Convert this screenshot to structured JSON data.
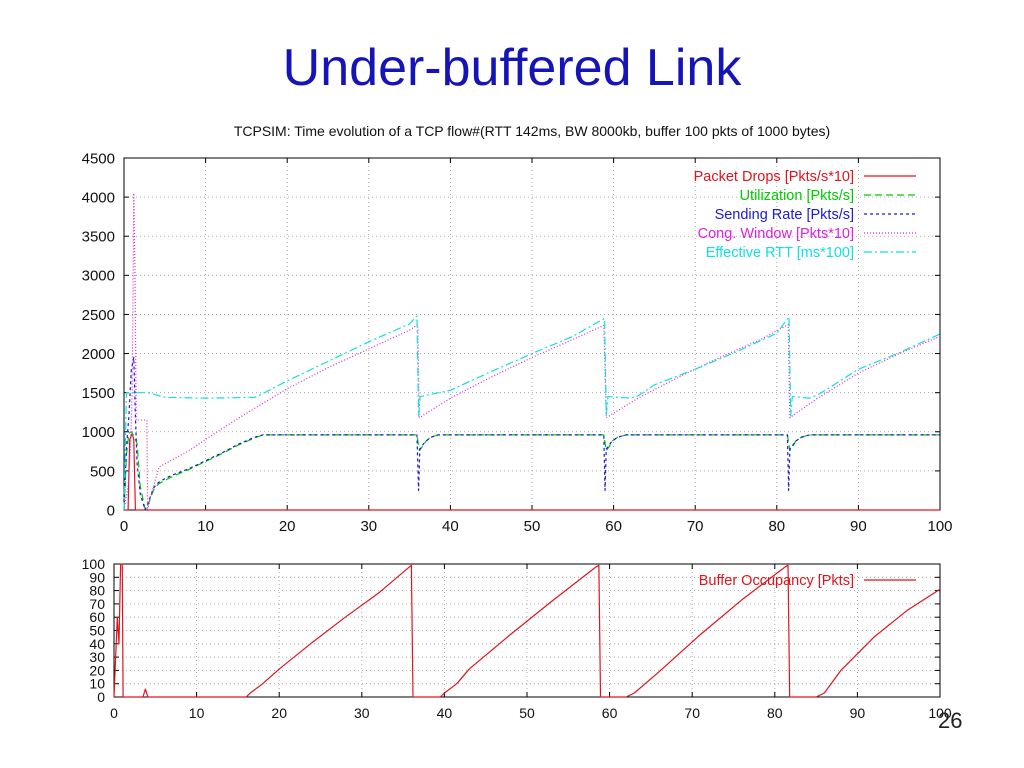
{
  "slide": {
    "title": "Under-buffered Link",
    "page_number": "26"
  },
  "chart_data": [
    {
      "type": "line",
      "title": "TCPSIM: Time evolution of a TCP flow#(RTT 142ms, BW 8000kb, buffer 100 pkts of 1000 bytes)",
      "xlabel": "",
      "ylabel": "",
      "xlim": [
        0,
        100
      ],
      "ylim": [
        0,
        4500
      ],
      "xticks": [
        0,
        10,
        20,
        30,
        40,
        50,
        60,
        70,
        80,
        90,
        100
      ],
      "yticks": [
        0,
        500,
        1000,
        1500,
        2000,
        2500,
        3000,
        3500,
        4000,
        4500
      ],
      "grid": true,
      "legend": "top-right",
      "series": [
        {
          "name": "Packet Drops [Pkts/s*10]",
          "color": "#e0141e",
          "dash": "",
          "x": [
            0,
            0.5,
            0.7,
            1.0,
            1.2,
            1.4,
            1.6,
            2,
            100
          ],
          "y": [
            0,
            0,
            900,
            980,
            900,
            0,
            0,
            0,
            0
          ]
        },
        {
          "name": "Utilization [Pkts/s]",
          "color": "#00cc00",
          "dash": "7,4",
          "x": [
            0,
            0.3,
            0.6,
            0.9,
            1.2,
            1.6,
            2.0,
            2.6,
            3.0,
            3.6,
            4.2,
            5,
            6,
            8,
            10,
            12,
            14,
            16,
            17,
            20,
            25,
            30,
            35,
            35.9,
            36.2,
            36.5,
            37,
            37.6,
            38.5,
            40,
            45,
            50,
            55,
            58.8,
            59.1,
            59.4,
            59.8,
            60.5,
            61.5,
            63,
            70,
            75,
            81.3,
            81.6,
            81.9,
            82.3,
            83,
            84,
            86,
            90,
            95,
            100
          ],
          "y": [
            0,
            700,
            980,
            1000,
            950,
            850,
            300,
            0,
            80,
            250,
            330,
            380,
            430,
            520,
            620,
            720,
            830,
            920,
            960,
            960,
            960,
            960,
            960,
            960,
            760,
            800,
            880,
            930,
            960,
            960,
            960,
            960,
            960,
            960,
            760,
            800,
            880,
            930,
            960,
            960,
            960,
            960,
            960,
            760,
            800,
            880,
            930,
            960,
            960,
            960,
            960,
            960
          ]
        },
        {
          "name": "Sending Rate [Pkts/s]",
          "color": "#1a1ad6",
          "dash": "3,3",
          "x": [
            0,
            0.3,
            0.6,
            0.9,
            1.2,
            1.4,
            1.6,
            2.0,
            2.6,
            3.0,
            3.6,
            4.2,
            5,
            6,
            8,
            10,
            12,
            14,
            16,
            17,
            20,
            25,
            30,
            35,
            35.9,
            36.1,
            36.25,
            36.5,
            37,
            37.6,
            38.5,
            40,
            45,
            50,
            55,
            58.8,
            58.95,
            59.1,
            59.4,
            59.8,
            60.5,
            61.5,
            63,
            70,
            75,
            81.3,
            81.45,
            81.6,
            81.9,
            82.3,
            83,
            84,
            86,
            90,
            95,
            100
          ],
          "y": [
            0,
            800,
            1200,
            1800,
            1950,
            1200,
            600,
            200,
            0,
            100,
            280,
            350,
            400,
            450,
            530,
            630,
            730,
            840,
            930,
            960,
            960,
            960,
            960,
            960,
            960,
            250,
            780,
            820,
            880,
            930,
            960,
            960,
            960,
            960,
            960,
            960,
            250,
            780,
            820,
            880,
            930,
            960,
            960,
            960,
            960,
            960,
            250,
            780,
            820,
            880,
            930,
            960,
            960,
            960,
            960,
            960
          ]
        },
        {
          "name": "Cong. Window [Pkts*10]",
          "color": "#e020e0",
          "dash": "1,2",
          "x": [
            0,
            0.5,
            0.8,
            1.0,
            1.2,
            1.35,
            1.5,
            1.8,
            2.8,
            2.9,
            3.2,
            4.3,
            8,
            12,
            16,
            20,
            25,
            30,
            35,
            36,
            36.2,
            40,
            45,
            50,
            55,
            58.8,
            59.1,
            63,
            68,
            73,
            78,
            81.4,
            81.6,
            85,
            90,
            95,
            100
          ],
          "y": [
            0,
            300,
            800,
            1500,
            4050,
            3000,
            1150,
            1150,
            1150,
            0,
            150,
            550,
            760,
            1040,
            1300,
            1550,
            1820,
            2060,
            2300,
            2370,
            1180,
            1430,
            1700,
            1950,
            2180,
            2360,
            1180,
            1430,
            1700,
            1950,
            2180,
            2370,
            1180,
            1430,
            1750,
            2000,
            2220
          ]
        },
        {
          "name": "Effective RTT [ms*100]",
          "color": "#10e0e0",
          "dash": "8,3,2,3",
          "x": [
            0,
            0.3,
            1.0,
            2.0,
            3.0,
            5,
            10,
            16,
            16.5,
            20,
            25,
            30,
            35,
            35.9,
            36.1,
            36.3,
            40,
            45,
            50,
            55,
            58.9,
            59.1,
            59.3,
            62,
            63,
            65,
            70,
            75,
            80,
            81.5,
            81.7,
            81.9,
            84,
            85,
            87,
            90,
            95,
            100
          ],
          "y": [
            0,
            1500,
            1500,
            1500,
            1500,
            1440,
            1430,
            1440,
            1460,
            1650,
            1900,
            2150,
            2380,
            2480,
            1200,
            1450,
            1530,
            1770,
            2000,
            2220,
            2450,
            1200,
            1450,
            1430,
            1460,
            1600,
            1800,
            2020,
            2260,
            2470,
            1200,
            1450,
            1430,
            1470,
            1600,
            1800,
            2010,
            2250
          ]
        }
      ]
    },
    {
      "type": "line",
      "title": "",
      "xlabel": "",
      "ylabel": "",
      "xlim": [
        0,
        100
      ],
      "ylim": [
        0,
        100
      ],
      "xticks": [
        0,
        10,
        20,
        30,
        40,
        50,
        60,
        70,
        80,
        90,
        100
      ],
      "yticks": [
        0,
        10,
        20,
        30,
        40,
        50,
        60,
        70,
        80,
        90,
        100
      ],
      "grid": true,
      "legend": "top-right",
      "series": [
        {
          "name": "Buffer Occupancy [Pkts]",
          "color": "#e0141e",
          "dash": "",
          "x": [
            0,
            0.4,
            0.6,
            0.8,
            1.0,
            1.1,
            1.3,
            2,
            3.5,
            3.8,
            4.1,
            5,
            16,
            16.5,
            18,
            20,
            24,
            28,
            32,
            35.8,
            36,
            36.2,
            39.5,
            40,
            41.5,
            43,
            48,
            53,
            58.4,
            58.7,
            58.9,
            62,
            63,
            66,
            71,
            76,
            81.3,
            81.6,
            81.8,
            85,
            86,
            88,
            92,
            96,
            100
          ],
          "y": [
            0,
            60,
            40,
            100,
            100,
            0,
            0,
            0,
            0,
            6,
            0,
            0,
            0,
            3,
            10,
            21,
            41,
            60,
            78,
            98,
            99,
            0,
            0,
            3,
            10,
            21,
            47,
            72,
            98,
            99,
            0,
            0,
            3,
            19,
            47,
            73,
            98,
            99,
            0,
            0,
            3,
            20,
            45,
            65,
            81
          ]
        }
      ]
    }
  ]
}
